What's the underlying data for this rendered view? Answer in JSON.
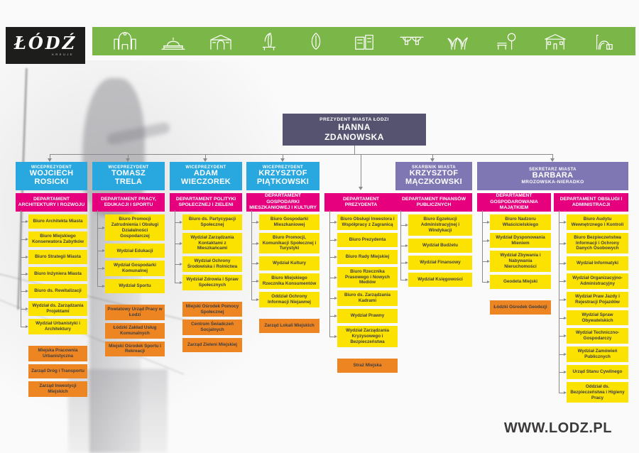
{
  "logo": {
    "text": "ŁÓDŹ",
    "subtext": "kreuje"
  },
  "banner": {
    "background_color": "#7ab648",
    "icons": [
      "city-gate",
      "market-hall",
      "gallery-building",
      "monument-bench",
      "leaf",
      "white-factory",
      "viaduct",
      "port-canopy",
      "park-bench-tree",
      "town-hall",
      "power-plant"
    ]
  },
  "colors": {
    "blue": "#29a8e0",
    "magenta": "#e6007e",
    "yellow": "#fbe200",
    "orange": "#ee8523",
    "lavender": "#7f76b4",
    "slate": "#565370",
    "green": "#7ab648"
  },
  "president": {
    "role": "PREZYDENT MIASTA ŁODZI",
    "name": "HANNA\nZDANOWSKA"
  },
  "leaders": [
    {
      "role": "WICEPREZYDENT",
      "name": "WOJCIECH\nROSICKI"
    },
    {
      "role": "WICEPREZYDENT",
      "name": "TOMASZ\nTRELA"
    },
    {
      "role": "WICEPREZYDENT",
      "name": "ADAM\nWIECZOREK"
    },
    {
      "role": "WICEPREZYDENT",
      "name": "KRZYSZTOF\nPIĄTKOWSKI"
    },
    {
      "role": "SKARBNIK MIASTA",
      "name": "KRZYSZTOF\nMĄCZKOWSKI"
    },
    {
      "role": "SEKRETARZ MIASTA",
      "name": "BARBARA",
      "name2": "MROZOWSKA-NIERADKO"
    }
  ],
  "columns": [
    {
      "department": "DEPARTAMENT ARCHITEKTURY I ROZWOJU",
      "items": [
        {
          "label": "Biuro Architekta Miasta",
          "type": "unit"
        },
        {
          "label": "Biuro Miejskiego Konserwatora Zabytków",
          "type": "unit"
        },
        {
          "label": "Biuro Strategii Miasta",
          "type": "unit"
        },
        {
          "label": "Biuro Inżyniera Miasta",
          "type": "unit"
        },
        {
          "label": "Biuro ds. Rewitalizacji",
          "type": "unit"
        },
        {
          "label": "Wydział ds. Zarządzania Projektami",
          "type": "unit"
        },
        {
          "label": "Wydział Urbanistyki i Architektury",
          "type": "unit"
        },
        {
          "label": "Miejska Pracownia Urbanistyczna",
          "type": "entity"
        },
        {
          "label": "Zarząd Dróg i Transportu",
          "type": "entity"
        },
        {
          "label": "Zarząd Inwestycji Miejskich",
          "type": "entity"
        }
      ]
    },
    {
      "department": "DEPARTAMENT PRACY, EDUKACJI I SPORTU",
      "items": [
        {
          "label": "Biuro Promocji Zatrudnienia i Obsługi Działalności Gospodarczej",
          "type": "unit"
        },
        {
          "label": "Wydział Edukacji",
          "type": "unit"
        },
        {
          "label": "Wydział Gospodarki Komunalnej",
          "type": "unit"
        },
        {
          "label": "Wydział Sportu",
          "type": "unit"
        },
        {
          "label": "Powiatowy Urząd Pracy w Łodzi",
          "type": "entity"
        },
        {
          "label": "Łódzki Zakład Usług Komunalnych",
          "type": "entity"
        },
        {
          "label": "Miejski Ośrodek Sportu i Rekreacji",
          "type": "entity"
        }
      ]
    },
    {
      "department": "DEPARTAMENT POLITYKI SPOŁECZNEJ I ZIELENI",
      "items": [
        {
          "label": "Biuro ds. Partycypacji Społecznej",
          "type": "unit"
        },
        {
          "label": "Wydział Zarządzania Kontaktami z Mieszkańcami",
          "type": "unit"
        },
        {
          "label": "Wydział Ochrony Środowiska i Rolnictwa",
          "type": "unit"
        },
        {
          "label": "Wydział Zdrowia i Spraw Społecznych",
          "type": "unit"
        },
        {
          "label": "Miejski Ośrodek Pomocy Społecznej",
          "type": "entity"
        },
        {
          "label": "Centrum Świadczeń Socjalnych",
          "type": "entity"
        },
        {
          "label": "Zarząd Zieleni Miejskiej",
          "type": "entity"
        }
      ]
    },
    {
      "department": "DEPARTAMENT GOSPODARKI MIESZKANIOWEJ I KULTURY",
      "items": [
        {
          "label": "Biuro Gospodarki Mieszkaniowej",
          "type": "unit"
        },
        {
          "label": "Biuro Promocji, Komunikacji Społecznej i Turystyki",
          "type": "unit"
        },
        {
          "label": "Wydział Kultury",
          "type": "unit"
        },
        {
          "label": "Biuro Miejskiego Rzecznika Konsumentów",
          "type": "unit"
        },
        {
          "label": "Oddział Ochrony Informacji Niejawnej",
          "type": "unit"
        },
        {
          "label": "Zarząd Lokali Miejskich",
          "type": "entity"
        }
      ]
    },
    {
      "department": "DEPARTAMENT PREZYDENTA",
      "items": [
        {
          "label": "Biuro Obsługi Inwestora i Współpracy z Zagranicą",
          "type": "unit"
        },
        {
          "label": "Biuro Prezydenta",
          "type": "unit"
        },
        {
          "label": "Biuro Rady Miejskiej",
          "type": "unit"
        },
        {
          "label": "Biuro Rzecznika Prasowego i Nowych Mediów",
          "type": "unit"
        },
        {
          "label": "Biuro ds. Zarządzania Kadrami",
          "type": "unit"
        },
        {
          "label": "Wydział Prawny",
          "type": "unit"
        },
        {
          "label": "Wydział Zarządzania Kryzysowego i Bezpieczeństwa",
          "type": "unit"
        },
        {
          "label": "Straż Miejska",
          "type": "entity"
        }
      ]
    },
    {
      "department": "DEPARTAMENT FINANSÓW PUBLICZNYCH",
      "items": [
        {
          "label": "Biuro Egzekucji Administracyjnej i Windykacji",
          "type": "unit"
        },
        {
          "label": "Wydział Budżetu",
          "type": "unit"
        },
        {
          "label": "Wydział Finansowy",
          "type": "unit"
        },
        {
          "label": "Wydział Księgowości",
          "type": "unit"
        }
      ]
    },
    {
      "department": "DEPARTAMENT GOSPODAROWANIA MAJĄTKIEM",
      "items": [
        {
          "label": "Biuro Nadzoru Właścicielskiego",
          "type": "unit"
        },
        {
          "label": "Wydział Dysponowania Mieniem",
          "type": "unit"
        },
        {
          "label": "Wydział Zbywania i Nabywania Nieruchomości",
          "type": "unit"
        },
        {
          "label": "Geodeta Miejski",
          "type": "unit"
        },
        {
          "label": "Łódzki Ośrodek Geodezji",
          "type": "entity"
        }
      ]
    },
    {
      "department": "DEPARTAMENT OBSŁUGI I ADMINISTRACJI",
      "items": [
        {
          "label": "Biuro Audytu Wewnętrznego i Kontroli",
          "type": "unit"
        },
        {
          "label": "Biuro Bezpieczeństwa Informacji i Ochrony Danych Osobowych",
          "type": "unit"
        },
        {
          "label": "Wydział Informatyki",
          "type": "unit"
        },
        {
          "label": "Wydział Organizacyjno-Administracyjny",
          "type": "unit"
        },
        {
          "label": "Wydział Praw Jazdy i Rejestracji Pojazdów",
          "type": "unit"
        },
        {
          "label": "Wydział Spraw Obywatelskich",
          "type": "unit"
        },
        {
          "label": "Wydział Techniczno-Gospodarczy",
          "type": "unit"
        },
        {
          "label": "Wydział Zamówień Publicznych",
          "type": "unit"
        },
        {
          "label": "Urząd Stanu Cywilnego",
          "type": "unit"
        },
        {
          "label": "Oddział ds. Bezpieczeństwa i Higieny Pracy",
          "type": "unit"
        }
      ]
    }
  ],
  "footer": {
    "website": "WWW.LODZ.PL"
  }
}
